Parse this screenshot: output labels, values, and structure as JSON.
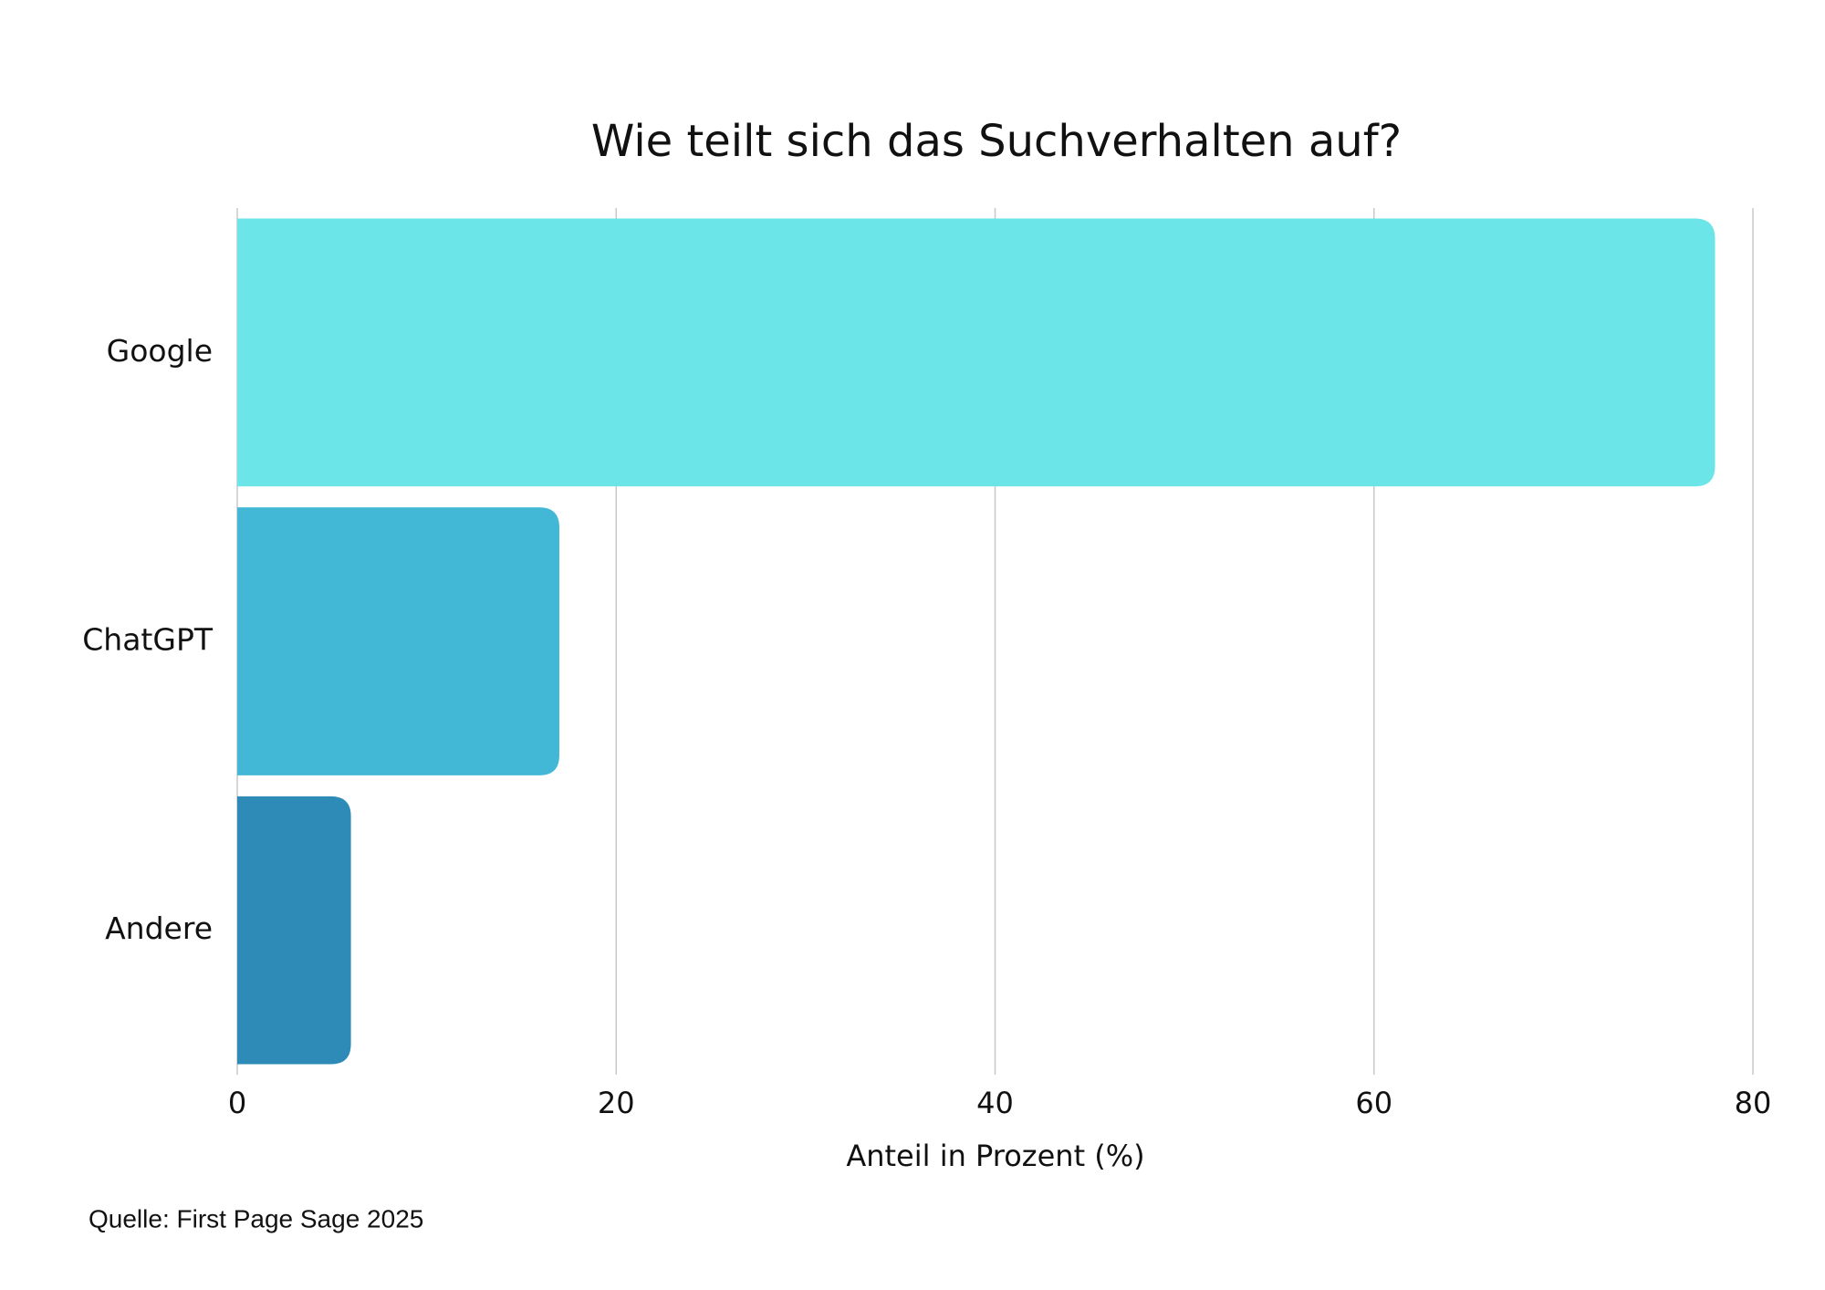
{
  "chart_data": {
    "type": "bar",
    "orientation": "horizontal",
    "title": "Wie teilt sich das Suchverhalten auf?",
    "categories": [
      "Google",
      "ChatGPT",
      "Andere"
    ],
    "values": [
      78,
      17,
      6
    ],
    "colors": [
      "#6ce5e8",
      "#43b7d6",
      "#2e8bb8"
    ],
    "xlim": [
      0,
      80
    ],
    "xticks": [
      0,
      20,
      40,
      60,
      80
    ],
    "grid": true,
    "xlabel": "Anteil in Prozent (%)",
    "source": "Quelle: First Page Sage 2025"
  }
}
